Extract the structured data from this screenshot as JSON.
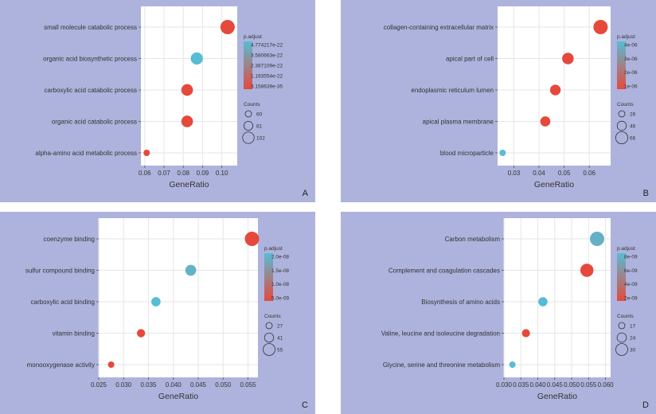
{
  "colors": {
    "panel_bg": "#adb3dc",
    "plot_bg": "#ffffff",
    "grid": "#e6e6e6",
    "low_p": "#e5493c",
    "high_p": "#57bcd4",
    "text": "#333333"
  },
  "chart_data": [
    {
      "id": "A",
      "type": "scatter",
      "panel_label": "A",
      "xlabel": "GeneRatio",
      "xlim": [
        0.058,
        0.108
      ],
      "xticks": [
        0.06,
        0.07,
        0.08,
        0.09,
        0.1
      ],
      "xtick_labels": [
        "0.06",
        "0.07",
        "0.08",
        "0.09",
        "0.10"
      ],
      "categories": [
        "small molecule catabolic process",
        "organic acid biosynthetic process",
        "carboxylic acid catabolic process",
        "organic acid catabolic process",
        "alpha-amino acid metabolic process"
      ],
      "x": [
        0.103,
        0.087,
        0.082,
        0.082,
        0.061
      ],
      "count": [
        108,
        95,
        92,
        92,
        60
      ],
      "p_adjust": [
        3.16e-35,
        4.77e-22,
        3.16e-35,
        3.16e-35,
        3.16e-35
      ],
      "color_legend": {
        "title": "p.adjust",
        "min": 3.16e-35,
        "max": 4.77e-22,
        "labels": [
          "4.774217e-22",
          "3.580663e-22",
          "2.387109e-22",
          "1.193554e-22",
          "3.158639e-35"
        ]
      },
      "size_legend": {
        "title": "Counts",
        "values": [
          60,
          81,
          102
        ]
      }
    },
    {
      "id": "B",
      "type": "scatter",
      "panel_label": "B",
      "xlabel": "GeneRatio",
      "xlim": [
        0.0235,
        0.0685
      ],
      "xticks": [
        0.03,
        0.04,
        0.05,
        0.06
      ],
      "xtick_labels": [
        "0.03",
        "0.04",
        "0.05",
        "0.06"
      ],
      "categories": [
        "collagen-containing extracellular matrix",
        "apical part of cell",
        "endoplasmic reticulum lumen",
        "apical plasma membrane",
        "blood microparticle"
      ],
      "x": [
        0.0645,
        0.0515,
        0.0465,
        0.0425,
        0.0255
      ],
      "count": [
        67,
        53,
        48,
        45,
        26
      ],
      "p_adjust": [
        1e-12,
        1e-12,
        1e-12,
        1e-12,
        4.2e-06
      ],
      "color_legend": {
        "title": "p.adjust",
        "min": 1e-12,
        "max": 4.2e-06,
        "labels": [
          "4e-06",
          "3e-06",
          "2e-06",
          "1e-06"
        ]
      },
      "size_legend": {
        "title": "Counts",
        "values": [
          26,
          46,
          66
        ]
      }
    },
    {
      "id": "C",
      "type": "scatter",
      "panel_label": "C",
      "xlabel": "GeneRatio",
      "xlim": [
        0.025,
        0.057
      ],
      "xticks": [
        0.025,
        0.03,
        0.035,
        0.04,
        0.045,
        0.05,
        0.055
      ],
      "xtick_labels": [
        "0.025",
        "0.030",
        "0.035",
        "0.040",
        "0.045",
        "0.050",
        "0.055"
      ],
      "categories": [
        "coenzyme binding",
        "sulfur compound binding",
        "carboxylic acid binding",
        "vitamin binding",
        "monooxygenase activity"
      ],
      "x": [
        0.0558,
        0.0435,
        0.0365,
        0.0335,
        0.0275
      ],
      "count": [
        57,
        44,
        38,
        34,
        27
      ],
      "p_adjust": [
        5e-12,
        1.2e-08,
        2.4e-08,
        5e-12,
        5e-12
      ],
      "color_legend": {
        "title": "p.adjust",
        "min": 5e-12,
        "max": 2.4e-08,
        "labels": [
          "2.0e-08",
          "1.5e-08",
          "1.0e-08",
          "5.0e-09"
        ]
      },
      "size_legend": {
        "title": "Counts",
        "values": [
          27,
          41,
          55
        ]
      }
    },
    {
      "id": "D",
      "type": "scatter",
      "panel_label": "D",
      "xlabel": "GeneRatio",
      "xlim": [
        0.03,
        0.0615
      ],
      "xticks": [
        0.03,
        0.035,
        0.04,
        0.045,
        0.05,
        0.055,
        0.06
      ],
      "xtick_labels": [
        "0.030",
        "0.035",
        "0.040",
        "0.045",
        "0.050",
        "0.055",
        "0.060"
      ],
      "categories": [
        "Carbon metabolism",
        "Complement and coagulation cascades",
        "Biosynthesis of amino acids",
        "Valine, leucine and isoleucine degradation",
        "Glycine, serine and threonine metabolism"
      ],
      "x": [
        0.0575,
        0.0545,
        0.0415,
        0.0365,
        0.0325
      ],
      "count": [
        31,
        29,
        22,
        20,
        17
      ],
      "p_adjust": [
        4.5e-09,
        1e-11,
        9e-09,
        1e-11,
        9e-09
      ],
      "color_legend": {
        "title": "p.adjust",
        "min": 1e-11,
        "max": 9e-09,
        "labels": [
          "8e-09",
          "6e-09",
          "4e-09",
          "2e-09"
        ]
      },
      "size_legend": {
        "title": "Counts",
        "values": [
          17,
          24,
          30
        ]
      }
    }
  ]
}
